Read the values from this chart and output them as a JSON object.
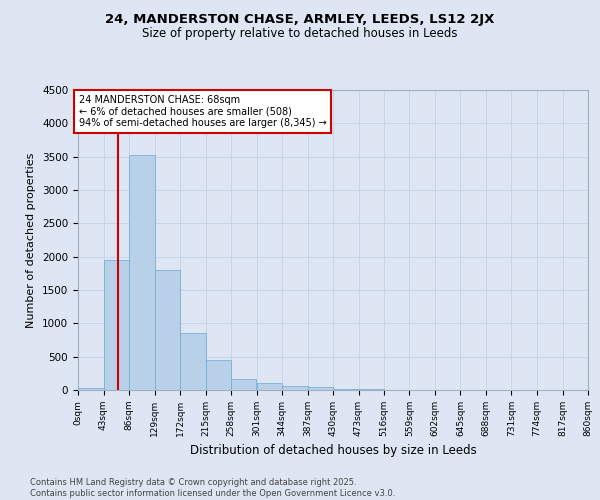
{
  "title_line1": "24, MANDERSTON CHASE, ARMLEY, LEEDS, LS12 2JX",
  "title_line2": "Size of property relative to detached houses in Leeds",
  "xlabel": "Distribution of detached houses by size in Leeds",
  "ylabel": "Number of detached properties",
  "bin_labels": [
    "0sqm",
    "43sqm",
    "86sqm",
    "129sqm",
    "172sqm",
    "215sqm",
    "258sqm",
    "301sqm",
    "344sqm",
    "387sqm",
    "430sqm",
    "473sqm",
    "516sqm",
    "559sqm",
    "602sqm",
    "645sqm",
    "688sqm",
    "731sqm",
    "774sqm",
    "817sqm",
    "860sqm"
  ],
  "bar_values": [
    30,
    1950,
    3530,
    1800,
    855,
    450,
    160,
    105,
    65,
    50,
    20,
    8,
    3,
    1,
    0,
    0,
    0,
    0,
    0,
    0
  ],
  "bar_color": "#b8d0e8",
  "bar_edge_color": "#6aaad4",
  "annotation_text_line1": "24 MANDERSTON CHASE: 68sqm",
  "annotation_text_line2": "← 6% of detached houses are smaller (508)",
  "annotation_text_line3": "94% of semi-detached houses are larger (8,345) →",
  "annotation_box_facecolor": "#ffffff",
  "annotation_box_edgecolor": "#cc0000",
  "vline_color": "#cc0000",
  "ylim": [
    0,
    4500
  ],
  "yticks": [
    0,
    500,
    1000,
    1500,
    2000,
    2500,
    3000,
    3500,
    4000,
    4500
  ],
  "grid_color": "#c8d4e8",
  "background_color": "#dde6f2",
  "footer_line1": "Contains HM Land Registry data © Crown copyright and database right 2025.",
  "footer_line2": "Contains public sector information licensed under the Open Government Licence v3.0.",
  "property_sqm": 68
}
